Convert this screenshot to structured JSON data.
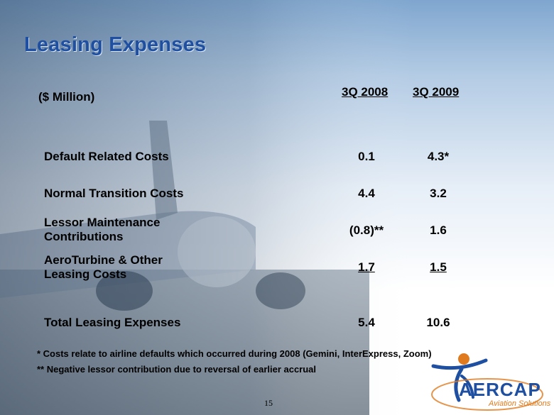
{
  "slide": {
    "title": "Leasing Expenses",
    "units": "($ Million)",
    "columns": [
      "3Q 2008",
      "3Q 2009"
    ],
    "rows": [
      {
        "label_lines": [
          "Default Related Costs"
        ],
        "v2008": "0.1",
        "v2009": "4.3*"
      },
      {
        "label_lines": [
          "Normal Transition Costs"
        ],
        "v2008": "4.4",
        "v2009": "3.2"
      },
      {
        "label_lines": [
          "Lessor Maintenance",
          "Contributions"
        ],
        "v2008": "(0.8)**",
        "v2009": "1.6"
      },
      {
        "label_lines": [
          "AeroTurbine & Other",
          "Leasing Costs"
        ],
        "v2008": "1.7",
        "v2009": "1.5"
      }
    ],
    "total": {
      "label": "Total Leasing Expenses",
      "v2008": "5.4",
      "v2009": "10.6"
    },
    "notes": [
      "*  Costs relate to airline defaults which occurred during 2008 (Gemini, InterExpress, Zoom)",
      "** Negative lessor contribution due to reversal of earlier accrual"
    ],
    "page_number": "15"
  },
  "logo": {
    "text": "AERCAP",
    "subtitle": "Aviation Solutions"
  },
  "colors": {
    "title": "#1f4fa0",
    "accent": "#e07a1f"
  }
}
